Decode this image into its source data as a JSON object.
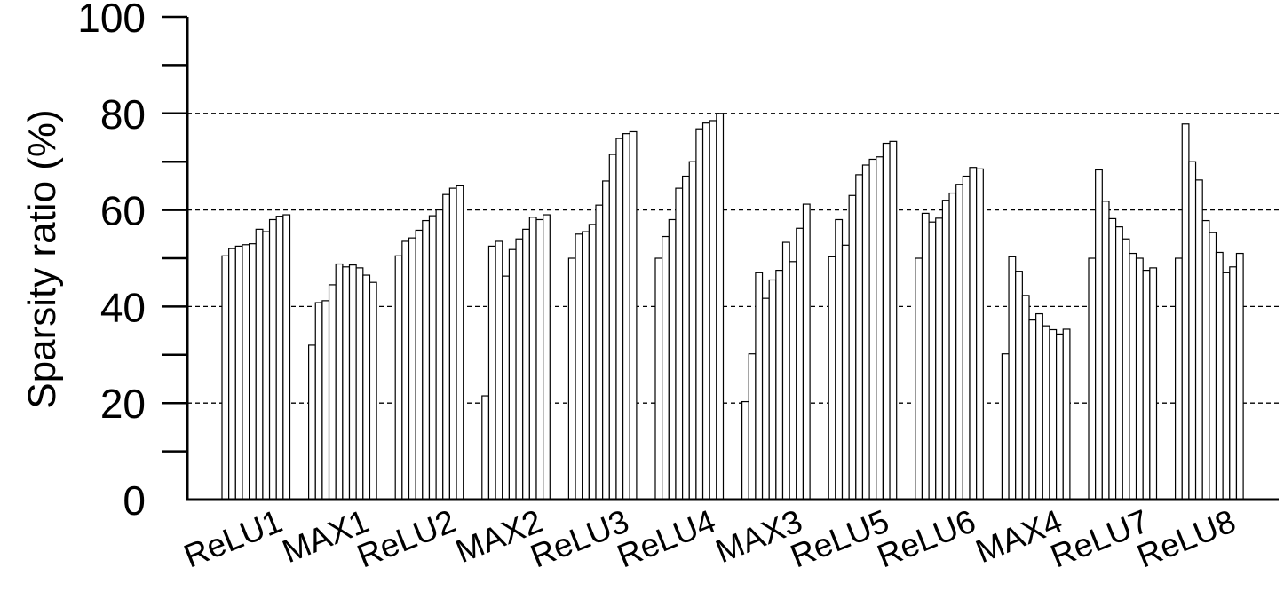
{
  "chart_data": {
    "type": "bar",
    "title": "",
    "xlabel": "",
    "ylabel": "Sparsity ratio (%)",
    "ylim": [
      0,
      100
    ],
    "yticks": [
      0,
      20,
      40,
      60,
      80,
      100
    ],
    "grid": {
      "style": "dashed",
      "y_values": [
        20,
        40,
        60,
        80
      ]
    },
    "legend": "none",
    "bar_fill": "#ffffff",
    "bar_stroke": "#000000",
    "groups": [
      {
        "label": "ReLU1",
        "values": [
          50.5,
          52,
          52.5,
          52.8,
          53,
          56,
          55.5,
          58,
          58.7,
          59
        ]
      },
      {
        "label": "MAX1",
        "values": [
          32,
          40.8,
          41.2,
          44.5,
          48.8,
          48.2,
          48.6,
          48,
          46.5,
          45
        ]
      },
      {
        "label": "ReLU2",
        "values": [
          50.5,
          53.5,
          54.2,
          55.8,
          57.8,
          58.8,
          60,
          63.2,
          64.5,
          65
        ]
      },
      {
        "label": "MAX2",
        "values": [
          21.5,
          52.5,
          53.5,
          46.3,
          51.8,
          54,
          56,
          58.5,
          58,
          59
        ]
      },
      {
        "label": "ReLU3",
        "values": [
          50,
          55,
          55.5,
          57,
          61,
          66,
          71.5,
          74.8,
          75.8,
          76.2
        ]
      },
      {
        "label": "ReLU4",
        "values": [
          50,
          54.5,
          58,
          64.5,
          67,
          70,
          76.8,
          78,
          78.5,
          80
        ]
      },
      {
        "label": "MAX3",
        "values": [
          20.3,
          30.2,
          47,
          41.7,
          45.5,
          47.5,
          53.3,
          49.3,
          56.2,
          61.2
        ]
      },
      {
        "label": "ReLU5",
        "values": [
          50.3,
          58,
          52.7,
          63,
          67.3,
          69.3,
          70.5,
          71,
          73.8,
          74.2
        ]
      },
      {
        "label": "ReLU6",
        "values": [
          50,
          59.3,
          57.5,
          58.3,
          62,
          63.5,
          65.3,
          67,
          68.8,
          68.5
        ]
      },
      {
        "label": "MAX4",
        "values": [
          30.2,
          50.3,
          47.3,
          42.3,
          37.2,
          38.5,
          36,
          35.2,
          34.3,
          35.3
        ]
      },
      {
        "label": "ReLU7",
        "values": [
          50,
          68.3,
          61.8,
          58.2,
          56.5,
          54,
          51,
          50,
          47.5,
          48
        ]
      },
      {
        "label": "ReLU8",
        "values": [
          50,
          77.8,
          70,
          66.2,
          57.8,
          55.3,
          51.2,
          47,
          48.2,
          51
        ]
      }
    ]
  }
}
